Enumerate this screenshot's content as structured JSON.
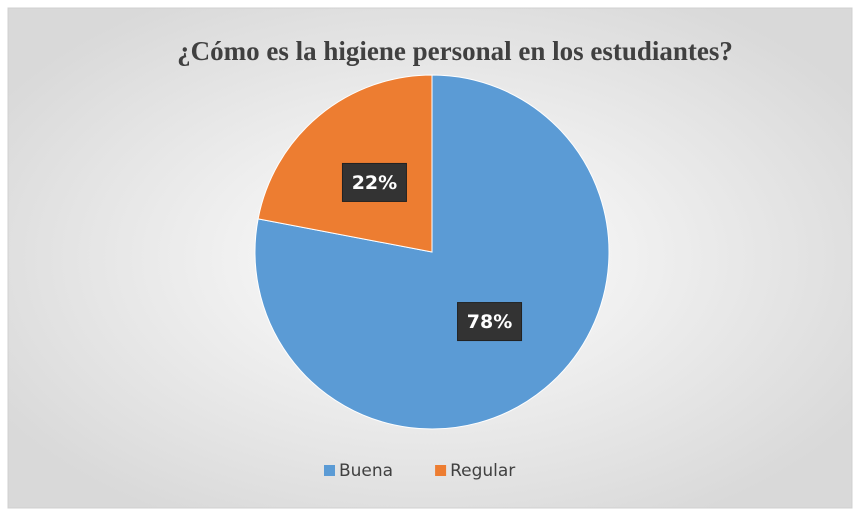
{
  "chart_data": {
    "type": "pie",
    "title": "¿Cómo es la higiene personal en los estudiantes?",
    "categories": [
      "Buena",
      "Regular"
    ],
    "values": [
      78,
      22
    ],
    "value_labels": [
      "78%",
      "22%"
    ],
    "colors": [
      "#5b9bd5",
      "#ed7d31"
    ],
    "legend": "bottom"
  }
}
